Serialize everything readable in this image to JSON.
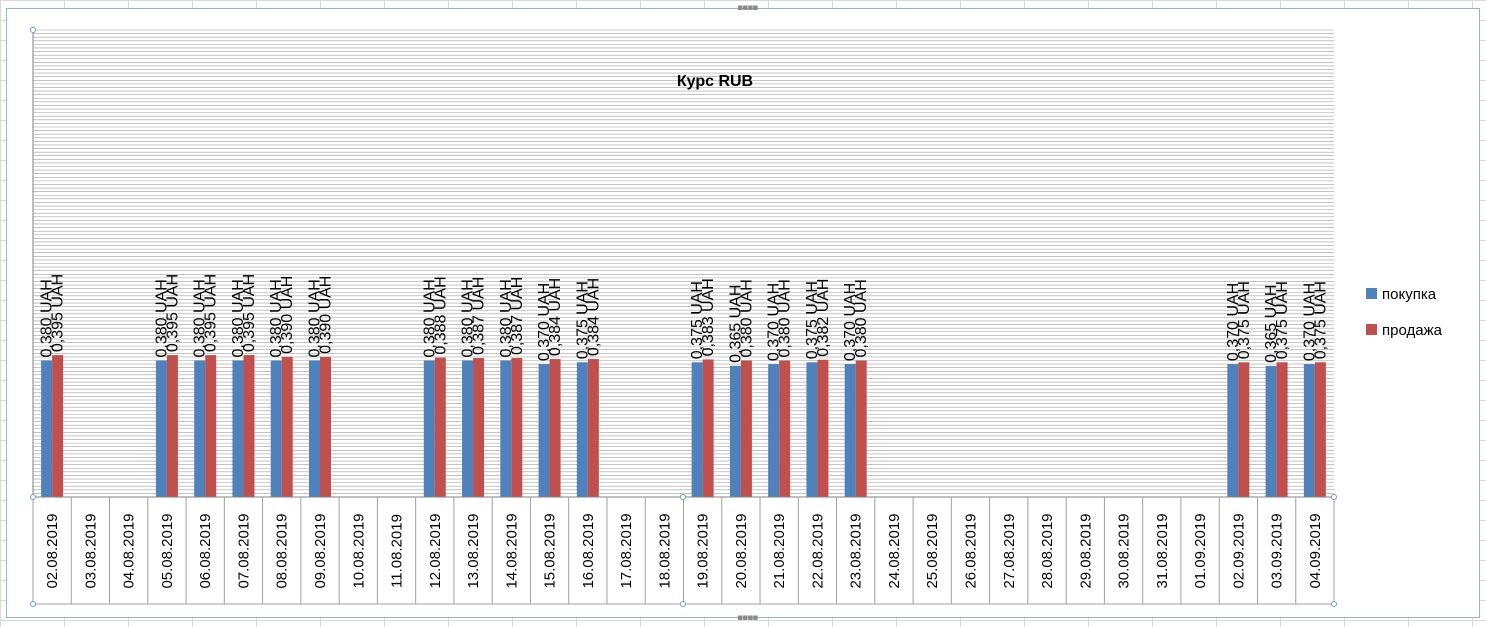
{
  "chart_data": {
    "type": "bar",
    "title": "Курс RUB",
    "legend_position": "right",
    "grid": true,
    "unit_suffix": " UAH",
    "categories": [
      "02.08.2019",
      "03.08.2019",
      "04.08.2019",
      "05.08.2019",
      "06.08.2019",
      "07.08.2019",
      "08.08.2019",
      "09.08.2019",
      "10.08.2019",
      "11.08.2019",
      "12.08.2019",
      "13.08.2019",
      "14.08.2019",
      "15.08.2019",
      "16.08.2019",
      "17.08.2019",
      "18.08.2019",
      "19.08.2019",
      "20.08.2019",
      "21.08.2019",
      "22.08.2019",
      "23.08.2019",
      "24.08.2019",
      "25.08.2019",
      "26.08.2019",
      "27.08.2019",
      "28.08.2019",
      "29.08.2019",
      "30.08.2019",
      "31.08.2019",
      "01.09.2019",
      "02.09.2019",
      "03.09.2019",
      "04.09.2019"
    ],
    "ylim": [
      0,
      1.3
    ],
    "series": [
      {
        "name": "покупка",
        "color": "#4f81bd",
        "values": [
          0.38,
          null,
          null,
          0.38,
          0.38,
          0.38,
          0.38,
          0.38,
          null,
          null,
          0.38,
          0.38,
          0.38,
          0.37,
          0.375,
          null,
          null,
          0.375,
          0.365,
          0.37,
          0.375,
          0.37,
          null,
          null,
          null,
          null,
          null,
          null,
          null,
          null,
          null,
          0.37,
          0.365,
          0.37
        ],
        "labels": [
          "0,380 UAH",
          null,
          null,
          "0,380 UAH",
          "0,380 UAH",
          "0,380 UAH",
          "0,380 UAH",
          "0,380 UAH",
          null,
          null,
          "0,380 UAH",
          "0,380 UAH",
          "0,380 UAH",
          "0,370 UAH",
          "0,375 UAH",
          null,
          null,
          "0,375 UAH",
          "0,365 UAH",
          "0,370 UAH",
          "0,375 UAH",
          "0,370 UAH",
          null,
          null,
          null,
          null,
          null,
          null,
          null,
          null,
          null,
          "0,370 UAH",
          "0,365 UAH",
          "0,370 UAH"
        ]
      },
      {
        "name": "продажа",
        "color": "#c0504d",
        "values": [
          0.395,
          null,
          null,
          0.395,
          0.395,
          0.395,
          0.39,
          0.39,
          null,
          null,
          0.388,
          0.387,
          0.387,
          0.384,
          0.384,
          null,
          null,
          0.383,
          0.38,
          0.38,
          0.382,
          0.38,
          null,
          null,
          null,
          null,
          null,
          null,
          null,
          null,
          null,
          0.375,
          0.375,
          0.375
        ],
        "labels": [
          "0,395 UAH",
          null,
          null,
          "0,395 UAH",
          "0,395 UAH",
          "0,395 UAH",
          "0,390 UAH",
          "0,390 UAH",
          null,
          null,
          "0,388 UAH",
          "0,387 UAH",
          "0,387 UAH",
          "0,384 UAH",
          "0,384 UAH",
          null,
          null,
          "0,383 UAH",
          "0,380 UAH",
          "0,380 UAH",
          "0,382 UAH",
          "0,380 UAH",
          null,
          null,
          null,
          null,
          null,
          null,
          null,
          null,
          null,
          "0,375 UAH",
          "0,375 UAH",
          "0,375 UAH"
        ]
      }
    ]
  }
}
